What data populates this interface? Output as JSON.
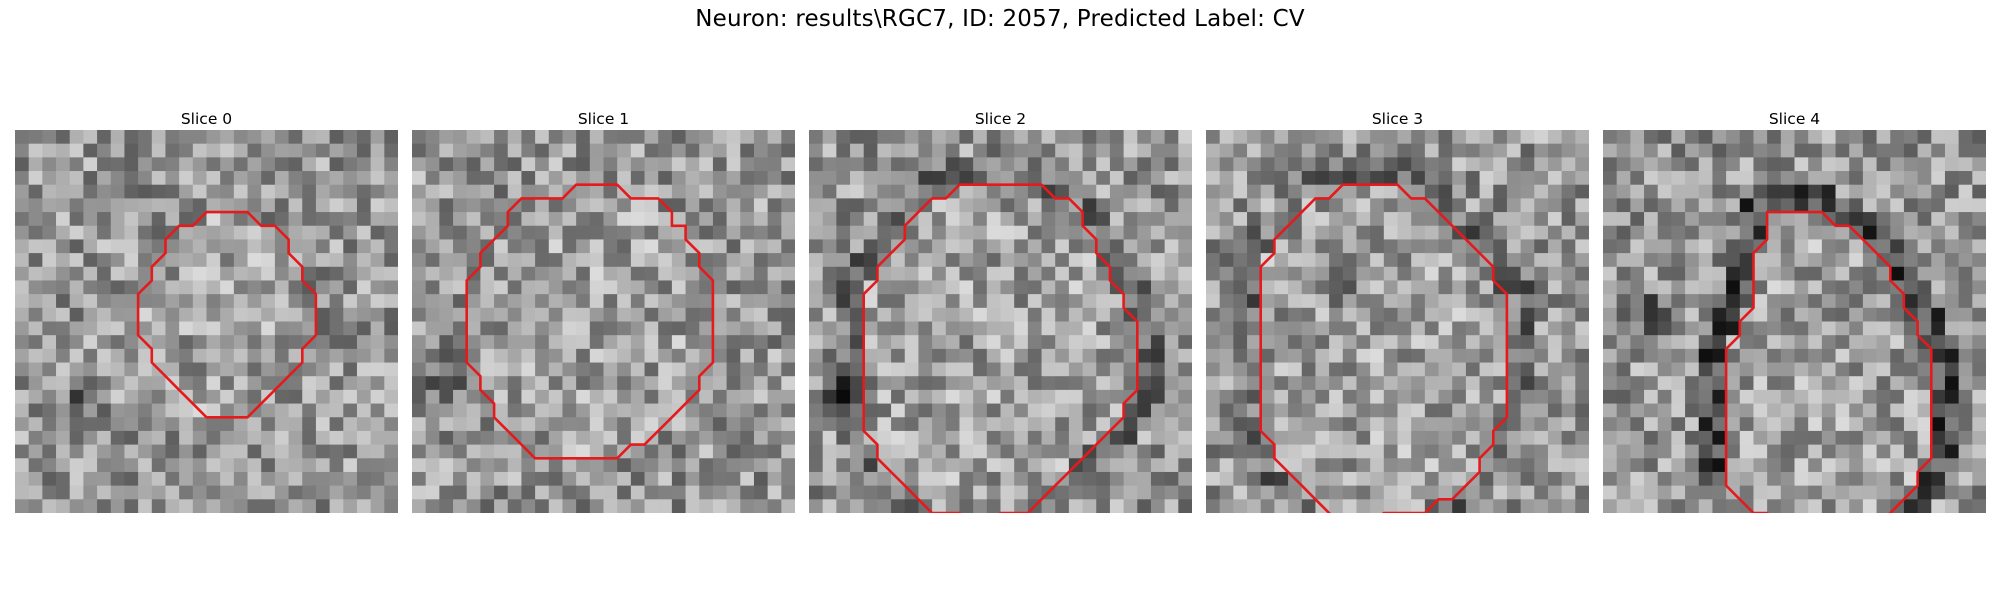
{
  "figure": {
    "title": "Neuron: results\\RGC7, ID: 2057, Predicted Label: CV"
  },
  "colors": {
    "contour": "#e41a1c",
    "background": "#ffffff"
  },
  "panels": [
    {
      "title": "Slice 0",
      "contour": [
        [
          10,
          2
        ],
        [
          13,
          2
        ],
        [
          14,
          3
        ],
        [
          15,
          3
        ],
        [
          16,
          4
        ],
        [
          16,
          5
        ],
        [
          17,
          6
        ],
        [
          17,
          7
        ],
        [
          18,
          8
        ],
        [
          18,
          11
        ],
        [
          17,
          12
        ],
        [
          17,
          13
        ],
        [
          16,
          14
        ],
        [
          15,
          15
        ],
        [
          14,
          16
        ],
        [
          13,
          17
        ],
        [
          11,
          17
        ],
        [
          10,
          17
        ],
        [
          9,
          16
        ],
        [
          8,
          15
        ],
        [
          7,
          14
        ],
        [
          6,
          13
        ],
        [
          6,
          12
        ],
        [
          5,
          11
        ],
        [
          5,
          8
        ],
        [
          6,
          7
        ],
        [
          6,
          6
        ],
        [
          7,
          5
        ],
        [
          7,
          4
        ],
        [
          8,
          3
        ],
        [
          9,
          3
        ]
      ],
      "seed": 11,
      "dark_band": 0,
      "dark_blob": [
        4,
        20
      ]
    },
    {
      "title": "Slice 1",
      "contour": [
        [
          8,
          0
        ],
        [
          11,
          0
        ],
        [
          12,
          1
        ],
        [
          14,
          1
        ],
        [
          15,
          2
        ],
        [
          15,
          3
        ],
        [
          16,
          3
        ],
        [
          16,
          4
        ],
        [
          17,
          5
        ],
        [
          17,
          6
        ],
        [
          18,
          7
        ],
        [
          18,
          13
        ],
        [
          17,
          14
        ],
        [
          17,
          15
        ],
        [
          16,
          16
        ],
        [
          15,
          17
        ],
        [
          14,
          18
        ],
        [
          13,
          19
        ],
        [
          12,
          19
        ],
        [
          11,
          20
        ],
        [
          5,
          20
        ],
        [
          4,
          19
        ],
        [
          3,
          18
        ],
        [
          2,
          17
        ],
        [
          2,
          16
        ],
        [
          1,
          15
        ],
        [
          1,
          14
        ],
        [
          0,
          13
        ],
        [
          0,
          7
        ],
        [
          1,
          6
        ],
        [
          1,
          5
        ],
        [
          2,
          4
        ],
        [
          3,
          3
        ],
        [
          3,
          2
        ],
        [
          4,
          1
        ],
        [
          6,
          1
        ],
        [
          7,
          1
        ]
      ],
      "seed": 23,
      "dark_band": 0,
      "dark_blob": [
        2,
        17
      ]
    },
    {
      "title": "Slice 2",
      "contour": [
        [
          7,
          0
        ],
        [
          13,
          0
        ],
        [
          14,
          1
        ],
        [
          15,
          1
        ],
        [
          16,
          2
        ],
        [
          16,
          3
        ],
        [
          17,
          4
        ],
        [
          17,
          5
        ],
        [
          18,
          6
        ],
        [
          18,
          7
        ],
        [
          19,
          8
        ],
        [
          19,
          9
        ],
        [
          20,
          10
        ],
        [
          20,
          15
        ],
        [
          19,
          16
        ],
        [
          19,
          17
        ],
        [
          18,
          18
        ],
        [
          17,
          19
        ],
        [
          16,
          20
        ],
        [
          15,
          21
        ],
        [
          14,
          22
        ],
        [
          13,
          23
        ],
        [
          12,
          24
        ],
        [
          10,
          24
        ],
        [
          9,
          25
        ],
        [
          8,
          25
        ],
        [
          7,
          24
        ],
        [
          5,
          24
        ],
        [
          4,
          23
        ],
        [
          3,
          22
        ],
        [
          2,
          21
        ],
        [
          1,
          20
        ],
        [
          1,
          19
        ],
        [
          0,
          18
        ],
        [
          0,
          8
        ],
        [
          1,
          7
        ],
        [
          1,
          6
        ],
        [
          2,
          5
        ],
        [
          3,
          4
        ],
        [
          3,
          3
        ],
        [
          4,
          2
        ],
        [
          5,
          1
        ],
        [
          6,
          1
        ]
      ],
      "seed": 37,
      "dark_band": 1,
      "dark_blob": [
        2,
        19
      ]
    },
    {
      "title": "Slice 3",
      "contour": [
        [
          6,
          0
        ],
        [
          10,
          0
        ],
        [
          11,
          1
        ],
        [
          12,
          1
        ],
        [
          13,
          2
        ],
        [
          14,
          3
        ],
        [
          15,
          4
        ],
        [
          16,
          5
        ],
        [
          17,
          6
        ],
        [
          17,
          7
        ],
        [
          18,
          8
        ],
        [
          18,
          17
        ],
        [
          17,
          18
        ],
        [
          17,
          19
        ],
        [
          16,
          20
        ],
        [
          16,
          21
        ],
        [
          15,
          22
        ],
        [
          14,
          23
        ],
        [
          13,
          23
        ],
        [
          12,
          24
        ],
        [
          9,
          24
        ],
        [
          8,
          25
        ],
        [
          6,
          25
        ],
        [
          5,
          24
        ],
        [
          4,
          23
        ],
        [
          3,
          22
        ],
        [
          2,
          21
        ],
        [
          1,
          20
        ],
        [
          1,
          19
        ],
        [
          0,
          18
        ],
        [
          0,
          6
        ],
        [
          1,
          5
        ],
        [
          1,
          4
        ],
        [
          2,
          3
        ],
        [
          3,
          2
        ],
        [
          4,
          1
        ],
        [
          5,
          1
        ]
      ],
      "seed": 51,
      "dark_band": 1,
      "dark_blob": [
        9,
        11
      ]
    },
    {
      "title": "Slice 4",
      "contour": [
        [
          8,
          2
        ],
        [
          12,
          2
        ],
        [
          13,
          3
        ],
        [
          14,
          3
        ],
        [
          15,
          4
        ],
        [
          16,
          5
        ],
        [
          17,
          6
        ],
        [
          17,
          7
        ],
        [
          18,
          8
        ],
        [
          18,
          9
        ],
        [
          19,
          10
        ],
        [
          19,
          11
        ],
        [
          20,
          12
        ],
        [
          20,
          20
        ],
        [
          19,
          21
        ],
        [
          19,
          22
        ],
        [
          18,
          23
        ],
        [
          17,
          24
        ],
        [
          16,
          25
        ],
        [
          9,
          25
        ],
        [
          8,
          24
        ],
        [
          7,
          24
        ],
        [
          6,
          23
        ],
        [
          5,
          22
        ],
        [
          5,
          12
        ],
        [
          6,
          11
        ],
        [
          6,
          10
        ],
        [
          7,
          9
        ],
        [
          7,
          5
        ],
        [
          8,
          4
        ]
      ],
      "seed": 67,
      "dark_band": 2,
      "dark_blob": [
        3,
        13
      ]
    }
  ]
}
